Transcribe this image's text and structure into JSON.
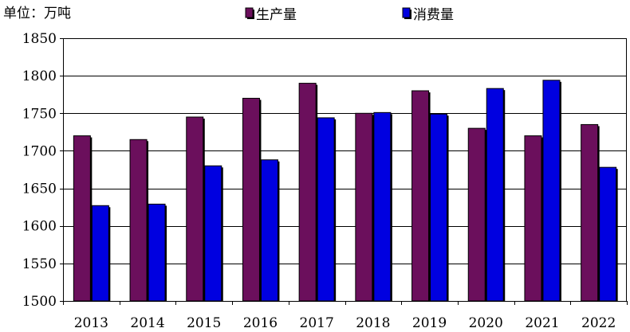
{
  "chart_data": {
    "type": "bar",
    "unit_label": "单位：万吨",
    "categories": [
      "2013",
      "2014",
      "2015",
      "2016",
      "2017",
      "2018",
      "2019",
      "2020",
      "2021",
      "2022"
    ],
    "series": [
      {
        "name": "生产量",
        "color": "#6b0f5c",
        "values": [
          1720,
          1715,
          1745,
          1770,
          1790,
          1750,
          1780,
          1730,
          1720,
          1735
        ]
      },
      {
        "name": "消费量",
        "color": "#0000e0",
        "values": [
          1627,
          1629,
          1680,
          1688,
          1744,
          1751,
          1749,
          1783,
          1794,
          1678
        ]
      }
    ],
    "ylim": [
      1500,
      1850
    ],
    "yticks": [
      1500,
      1550,
      1600,
      1650,
      1700,
      1750,
      1800,
      1850
    ],
    "grid": true,
    "legend_position": "top"
  }
}
